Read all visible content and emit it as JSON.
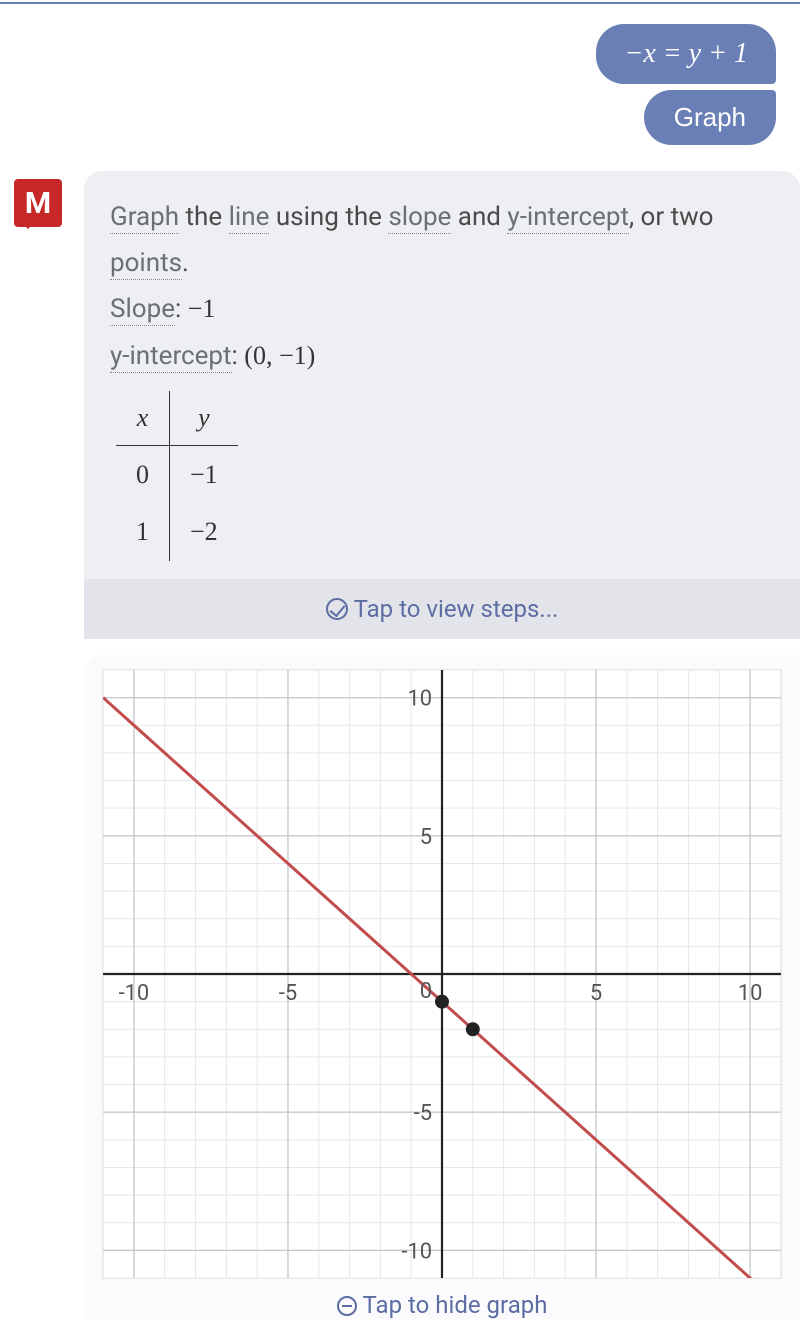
{
  "top_border_color": "#6b7fb8",
  "user": {
    "equation": "−x = y + 1",
    "command": "Graph",
    "bubble_color": "#6a7fb5",
    "text_color": "#ffffff"
  },
  "logo": {
    "letter": "M",
    "bg": "#c62828"
  },
  "answer": {
    "bg": "#eeeff3",
    "text_color": "#4a4a4a",
    "underline_color": "#888888",
    "line1": {
      "w1": "Graph",
      "t1": " the ",
      "w2": "line",
      "t2": " using the ",
      "w3": "slope",
      "t3": " and ",
      "w4": "y-intercept",
      "t4": ", or two"
    },
    "line2": {
      "w1": "points",
      "t1": "."
    },
    "slope_label": "Slope",
    "slope_value": "−1",
    "yint_label": "y-intercept",
    "yint_value": "(0, −1)",
    "table": {
      "headers": [
        "x",
        "y"
      ],
      "rows": [
        [
          "0",
          "−1"
        ],
        [
          "1",
          "−2"
        ]
      ]
    }
  },
  "steps_bar": {
    "label": "Tap to view steps...",
    "bg": "#e3e4e9",
    "color": "#5b6da3"
  },
  "chart": {
    "type": "line",
    "xlim": [
      -11,
      11
    ],
    "ylim": [
      -11,
      11
    ],
    "xtick_major": [
      -10,
      -5,
      5,
      10
    ],
    "ytick_major": [
      -10,
      -5,
      5,
      10
    ],
    "xtick_labels": [
      "-10",
      "-5",
      "5",
      "10"
    ],
    "ytick_labels": [
      "-10",
      "-5",
      "5",
      "10"
    ],
    "origin_label": "0",
    "grid_step": 1,
    "grid_color": "#e7e7eb",
    "grid_major_color": "#c9c9d0",
    "axis_color": "#222222",
    "background_color": "#ffffff",
    "tick_label_color": "#555555",
    "tick_label_fontsize": 22,
    "line": {
      "slope": -1,
      "intercept": -1,
      "color": "#c24b4b",
      "width": 3,
      "x_from": -11,
      "x_to": 11
    },
    "points": [
      {
        "x": 0,
        "y": -1,
        "r": 7,
        "fill": "#222222"
      },
      {
        "x": 1,
        "y": -2,
        "r": 7,
        "fill": "#222222"
      }
    ]
  },
  "hide_bar": {
    "label": "Tap to hide graph",
    "color": "#5b6da3"
  }
}
